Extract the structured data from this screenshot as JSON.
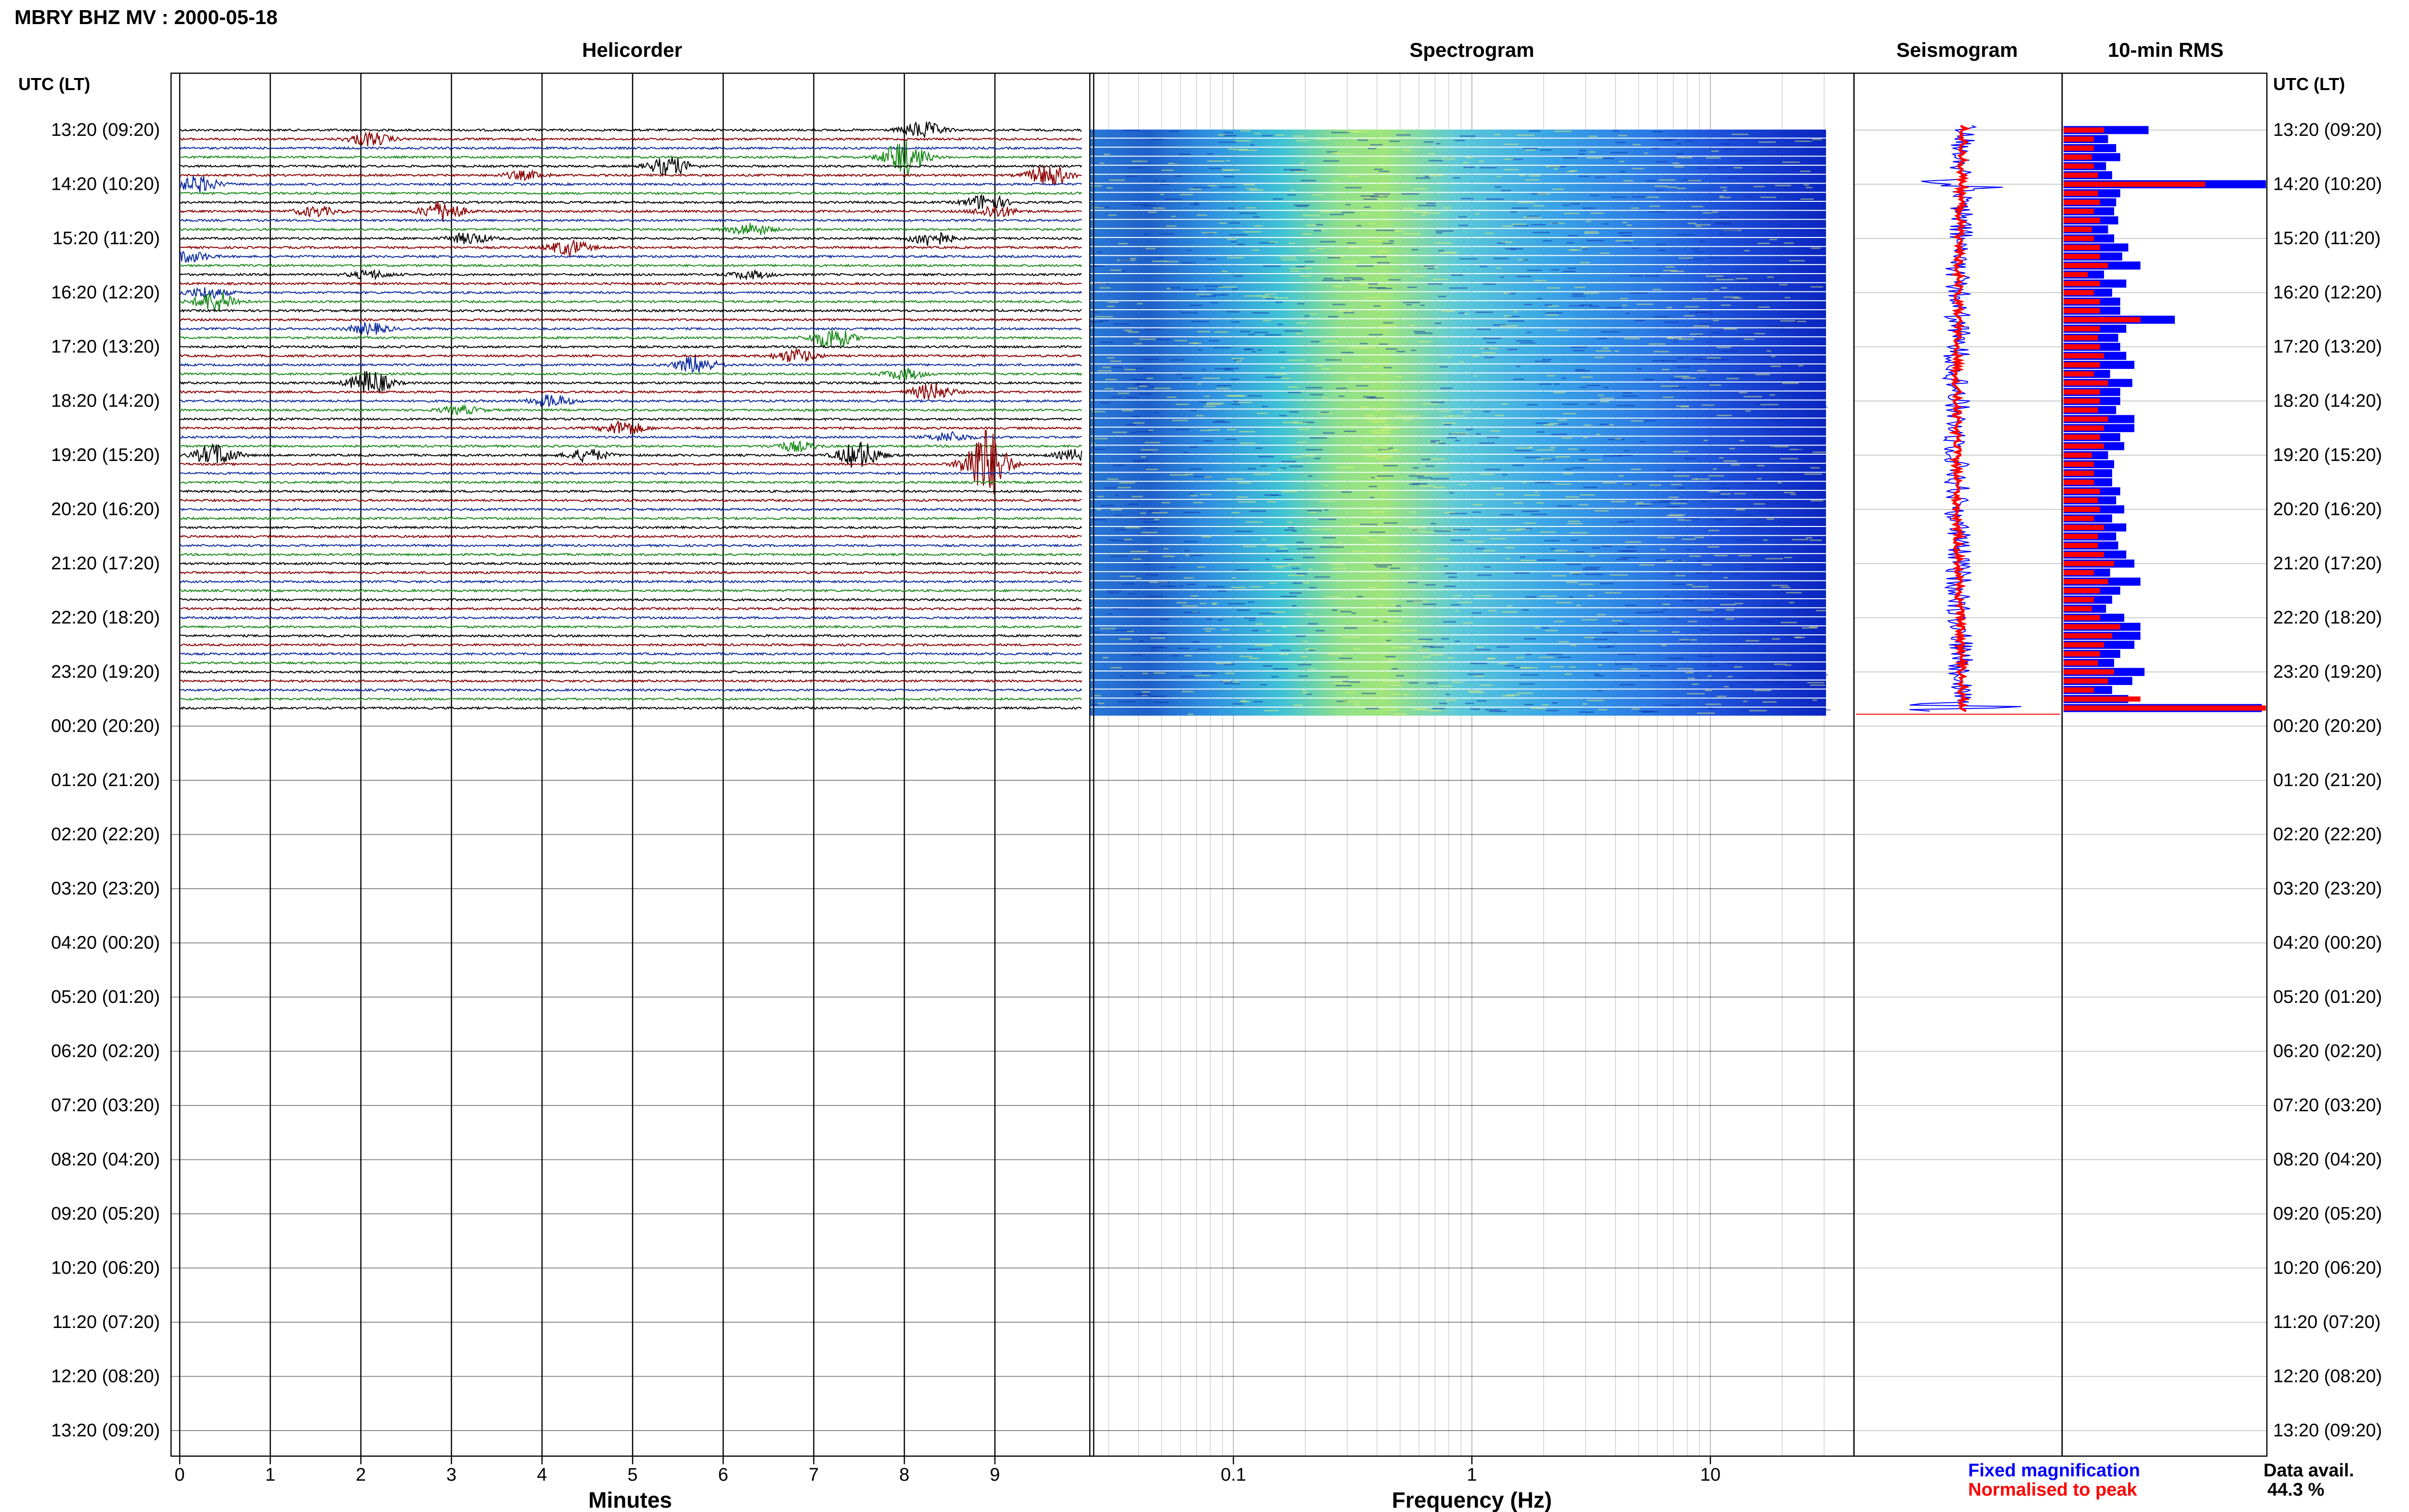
{
  "header": {
    "title": "MBRY BHZ MV : 2000-05-18"
  },
  "panels": {
    "helicorder": "Helicorder",
    "spectrogram": "Spectrogram",
    "seismogram": "Seismogram",
    "rms": "10-min RMS"
  },
  "axes": {
    "left_time_label": "UTC (LT)",
    "right_time_label": "UTC (LT)",
    "helicorder_xlabel": "Minutes",
    "spectrogram_xlabel": "Frequency (Hz)"
  },
  "footer": {
    "legend_fixed": "Fixed magnification",
    "legend_normalised": "Normalised to peak",
    "data_avail_label": "Data avail.",
    "data_avail_value": "44.3 %"
  },
  "colors": {
    "trace_cycle": [
      "#000000",
      "#8b0000",
      "#0b2a9e",
      "#1a8a1a"
    ],
    "rms_fixed": "#0000ff",
    "rms_normalised": "#ff0000",
    "legend_fixed": "#0000ff",
    "legend_normalised": "#ff0000"
  },
  "chart_data": [
    {
      "type": "line",
      "name": "helicorder",
      "x_ticks": [
        "0",
        "1",
        "2",
        "3",
        "4",
        "5",
        "6",
        "7",
        "8",
        "9"
      ],
      "xlim": [
        0,
        10
      ],
      "xlabel": "Minutes",
      "y_tick_labels": [
        "13:20 (09:20)",
        "14:20 (10:20)",
        "15:20 (11:20)",
        "16:20 (12:20)",
        "17:20 (13:20)",
        "18:20 (14:20)",
        "19:20 (15:20)",
        "20:20 (16:20)",
        "21:20 (17:20)",
        "22:20 (18:20)",
        "23:20 (19:20)",
        "00:20 (20:20)",
        "01:20 (21:20)",
        "02:20 (22:20)",
        "03:20 (23:20)",
        "04:20 (00:20)",
        "05:20 (01:20)",
        "06:20 (02:20)",
        "07:20 (03:20)",
        "08:20 (04:20)",
        "09:20 (05:20)",
        "10:20 (06:20)",
        "11:20 (07:20)",
        "12:20 (08:20)",
        "13:20 (09:20)"
      ],
      "rows_per_hour": 6,
      "rows_with_data": 65,
      "events": [
        {
          "row": 0,
          "minute": 8.2,
          "amp": 1.2
        },
        {
          "row": 1,
          "minute": 2.1,
          "amp": 1.0
        },
        {
          "row": 3,
          "minute": 8.0,
          "amp": 2.6
        },
        {
          "row": 4,
          "minute": 5.4,
          "amp": 1.4
        },
        {
          "row": 5,
          "minute": 3.8,
          "amp": 0.6
        },
        {
          "row": 5,
          "minute": 9.6,
          "amp": 1.6
        },
        {
          "row": 6,
          "minute": 0.2,
          "amp": 1.2
        },
        {
          "row": 8,
          "minute": 8.9,
          "amp": 1.2
        },
        {
          "row": 9,
          "minute": 1.5,
          "amp": 0.7
        },
        {
          "row": 9,
          "minute": 2.9,
          "amp": 1.5
        },
        {
          "row": 9,
          "minute": 9.0,
          "amp": 0.9
        },
        {
          "row": 11,
          "minute": 6.3,
          "amp": 0.9
        },
        {
          "row": 12,
          "minute": 8.3,
          "amp": 1.1
        },
        {
          "row": 12,
          "minute": 3.2,
          "amp": 0.8
        },
        {
          "row": 13,
          "minute": 4.3,
          "amp": 1.1
        },
        {
          "row": 14,
          "minute": 0.1,
          "amp": 0.8
        },
        {
          "row": 16,
          "minute": 2.1,
          "amp": 0.6
        },
        {
          "row": 16,
          "minute": 6.3,
          "amp": 0.6
        },
        {
          "row": 18,
          "minute": 0.3,
          "amp": 0.8
        },
        {
          "row": 19,
          "minute": 0.4,
          "amp": 1.6
        },
        {
          "row": 23,
          "minute": 7.2,
          "amp": 1.6
        },
        {
          "row": 22,
          "minute": 2.1,
          "amp": 0.8
        },
        {
          "row": 25,
          "minute": 6.8,
          "amp": 1.0
        },
        {
          "row": 26,
          "minute": 5.7,
          "amp": 1.3
        },
        {
          "row": 27,
          "minute": 8.0,
          "amp": 0.8
        },
        {
          "row": 28,
          "minute": 2.1,
          "amp": 1.8
        },
        {
          "row": 29,
          "minute": 8.3,
          "amp": 1.2
        },
        {
          "row": 30,
          "minute": 4.1,
          "amp": 0.9
        },
        {
          "row": 31,
          "minute": 3.1,
          "amp": 0.6
        },
        {
          "row": 33,
          "minute": 4.9,
          "amp": 1.1
        },
        {
          "row": 34,
          "minute": 8.5,
          "amp": 0.7
        },
        {
          "row": 35,
          "minute": 6.8,
          "amp": 0.7
        },
        {
          "row": 36,
          "minute": 0.4,
          "amp": 1.6
        },
        {
          "row": 36,
          "minute": 7.5,
          "amp": 2.0
        },
        {
          "row": 36,
          "minute": 4.5,
          "amp": 0.9
        },
        {
          "row": 36,
          "minute": 9.9,
          "amp": 0.8
        },
        {
          "row": 37,
          "minute": 8.9,
          "amp": 5.5
        }
      ]
    },
    {
      "type": "heatmap",
      "name": "spectrogram",
      "x_scale": "log",
      "xlim": [
        0.025,
        40
      ],
      "x_tick_labels": [
        "0.1",
        "1",
        "10"
      ],
      "x_tick_values": [
        0.1,
        1,
        10
      ],
      "xlabel": "Frequency (Hz)",
      "energy_peak_hz": 0.3,
      "rows_with_data": 65
    },
    {
      "type": "line",
      "name": "seismogram",
      "xlabel": "",
      "series": [
        {
          "name": "Fixed magnification",
          "color": "#0000ff"
        },
        {
          "name": "Normalised to peak",
          "color": "#ff0000"
        }
      ],
      "rows_with_data": 65
    },
    {
      "type": "bar",
      "name": "10-min RMS",
      "orientation": "horizontal",
      "series": [
        {
          "name": "Fixed magnification",
          "color": "#0000ff",
          "values": [
            0.42,
            0.22,
            0.26,
            0.28,
            0.21,
            0.24,
            1.0,
            0.28,
            0.26,
            0.25,
            0.27,
            0.22,
            0.25,
            0.32,
            0.29,
            0.38,
            0.2,
            0.31,
            0.24,
            0.28,
            0.28,
            0.55,
            0.31,
            0.27,
            0.28,
            0.31,
            0.35,
            0.23,
            0.34,
            0.28,
            0.28,
            0.26,
            0.35,
            0.35,
            0.28,
            0.3,
            0.22,
            0.25,
            0.24,
            0.24,
            0.28,
            0.26,
            0.3,
            0.24,
            0.31,
            0.26,
            0.27,
            0.31,
            0.35,
            0.23,
            0.38,
            0.28,
            0.24,
            0.21,
            0.3,
            0.38,
            0.38,
            0.35,
            0.28,
            0.25,
            0.4,
            0.34,
            0.24,
            0.32,
            0.98
          ]
        },
        {
          "name": "Normalised to peak",
          "color": "#ff0000",
          "values": [
            0.2,
            0.15,
            0.15,
            0.14,
            0.15,
            0.17,
            0.7,
            0.17,
            0.18,
            0.15,
            0.18,
            0.14,
            0.15,
            0.18,
            0.18,
            0.22,
            0.12,
            0.18,
            0.15,
            0.18,
            0.18,
            0.38,
            0.18,
            0.17,
            0.18,
            0.2,
            0.18,
            0.15,
            0.22,
            0.18,
            0.18,
            0.17,
            0.22,
            0.2,
            0.18,
            0.2,
            0.14,
            0.15,
            0.15,
            0.15,
            0.18,
            0.17,
            0.18,
            0.15,
            0.2,
            0.17,
            0.17,
            0.2,
            0.25,
            0.15,
            0.22,
            0.18,
            0.15,
            0.14,
            0.18,
            0.28,
            0.24,
            0.2,
            0.18,
            0.17,
            0.25,
            0.22,
            0.15,
            0.38,
            1.0
          ]
        }
      ]
    }
  ]
}
